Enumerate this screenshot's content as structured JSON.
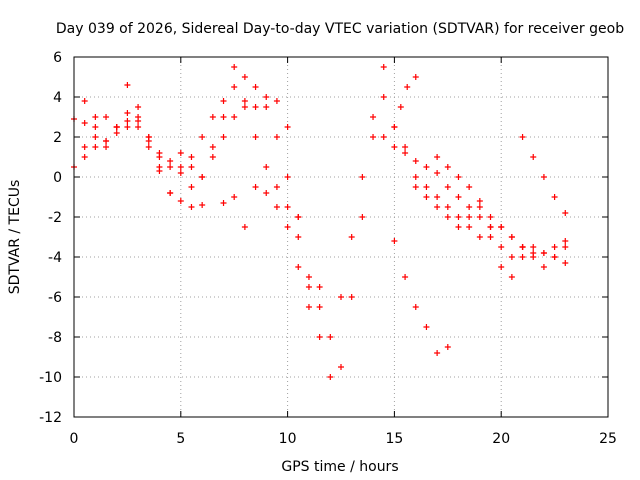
{
  "chart_data": {
    "type": "scatter",
    "title": "Day 039 of 2026, Sidereal Day-to-day VTEC variation (SDTVAR) for receiver geob",
    "xlabel": "GPS time / hours",
    "ylabel": "SDTVAR / TECUs",
    "xlim": [
      0,
      25
    ],
    "ylim": [
      -12,
      6
    ],
    "x_ticks": [
      "0",
      "5",
      "10",
      "15",
      "20",
      "25"
    ],
    "y_ticks": [
      "-12",
      "-10",
      "-8",
      "-6",
      "-4",
      "-2",
      "0",
      "2",
      "4",
      "6"
    ],
    "grid": true,
    "legend": "none",
    "marker": "plus",
    "color": "#ff0000",
    "series": [
      {
        "x": [
          0.0,
          0.5,
          1.0,
          1.5,
          2.0,
          2.5,
          3.0,
          3.5,
          4.0,
          4.5,
          5.0,
          5.5,
          6.0
        ],
        "y": [
          0.5,
          1.5,
          2.5,
          3.0,
          2.5,
          3.2,
          2.8,
          1.5,
          0.3,
          -0.8,
          -1.2,
          -1.5,
          -1.4
        ]
      },
      {
        "x": [
          0.0,
          0.5,
          1.0,
          1.5,
          2.0,
          2.5,
          3.0,
          3.5,
          4.0,
          4.5,
          5.0,
          5.5,
          6.0,
          6.5,
          7.0,
          7.5,
          8.0,
          8.5,
          9.0,
          9.5,
          10.0,
          10.5,
          11.0,
          11.5,
          12.0,
          12.5,
          13.0,
          13.5,
          14.0,
          14.5
        ],
        "y": [
          2.9,
          2.7,
          2.0,
          1.8,
          2.5,
          4.6,
          3.5,
          2.0,
          0.5,
          -0.8,
          0.5,
          1.0,
          2.0,
          3.0,
          3.8,
          4.5,
          3.8,
          3.5,
          3.5,
          2.0,
          0.0,
          -3.0,
          -5.5,
          -8.0,
          -10.0,
          -9.5,
          -6.0,
          -2.0,
          2.0,
          4.0
        ]
      },
      {
        "x": [
          0.5,
          1.0,
          1.5,
          2.0,
          2.5,
          3.0,
          3.5,
          4.0,
          4.5,
          5.0,
          5.5,
          6.0,
          6.5,
          7.0,
          7.5,
          8.0,
          8.5,
          9.0,
          9.5,
          10.0,
          10.5,
          11.0,
          11.5,
          12.0,
          12.5,
          13.0,
          13.5,
          14.0,
          14.5,
          15.0,
          15.5,
          16.0,
          16.5,
          17.0,
          17.5,
          18.0,
          18.5,
          19.0,
          19.5,
          20.0,
          20.5,
          21.0,
          21.5,
          22.0,
          22.5,
          23.0
        ],
        "y": [
          3.8,
          3.0,
          1.5,
          2.2,
          2.5,
          3.0,
          2.0,
          1.0,
          0.8,
          1.2,
          0.5,
          0.0,
          1.5,
          3.0,
          5.5,
          5.0,
          4.5,
          4.0,
          3.8,
          2.5,
          -2.0,
          -5.0,
          -6.5,
          -8.0,
          -6.0,
          -3.0,
          0.0,
          3.0,
          5.5,
          2.5,
          1.5,
          0.0,
          -0.5,
          -1.0,
          -1.5,
          -2.0,
          -2.5,
          -3.0,
          -3.0,
          -4.5,
          -5.0,
          -4.0,
          -3.5,
          -3.8,
          -4.0,
          -3.5
        ]
      },
      {
        "x": [
          0.5,
          1.0,
          1.5,
          2.0,
          2.5,
          3.0,
          3.5,
          4.0,
          4.5,
          5.0,
          5.5,
          6.0,
          6.5,
          7.0,
          7.5,
          8.0,
          8.5,
          9.0,
          9.5,
          10.0,
          10.5
        ],
        "y": [
          1.0,
          1.5,
          1.8,
          2.5,
          2.8,
          2.5,
          1.8,
          1.2,
          0.5,
          0.2,
          -0.5,
          0.0,
          1.0,
          2.0,
          3.0,
          3.5,
          2.0,
          0.5,
          -0.5,
          -1.5,
          -2.0
        ]
      },
      {
        "x": [
          7.0,
          7.5,
          8.0,
          8.5,
          9.0,
          9.5,
          10.0,
          10.5,
          11.0,
          11.5
        ],
        "y": [
          -1.3,
          -1.0,
          -2.5,
          -0.5,
          -0.8,
          -1.5,
          -2.5,
          -4.5,
          -6.5,
          -5.5
        ]
      },
      {
        "x": [
          15.0,
          15.5,
          16.0,
          16.5,
          17.0,
          17.5
        ],
        "y": [
          -3.2,
          -5.0,
          -6.5,
          -7.5,
          -8.8,
          -8.5
        ]
      },
      {
        "x": [
          14.5,
          15.0,
          15.5,
          16.0,
          16.5,
          17.0,
          17.5,
          18.0,
          18.5,
          19.0,
          19.5,
          20.0,
          20.5,
          21.0,
          21.5,
          22.0,
          22.5,
          23.0
        ],
        "y": [
          2.0,
          1.5,
          1.2,
          0.8,
          0.5,
          0.2,
          -0.5,
          -1.0,
          -1.5,
          -2.0,
          -2.5,
          -2.5,
          -3.0,
          -3.5,
          -3.8,
          -3.8,
          -3.5,
          -3.2
        ]
      },
      {
        "x": [
          16.0,
          16.5,
          17.0,
          17.5,
          18.0,
          18.5,
          19.0,
          19.5,
          20.0,
          20.5,
          21.0,
          21.5,
          22.0,
          22.5,
          23.0
        ],
        "y": [
          -0.5,
          -1.0,
          -1.5,
          -2.0,
          -2.5,
          -2.0,
          -1.5,
          -2.5,
          -3.5,
          -4.0,
          -3.5,
          -4.0,
          -4.5,
          -4.0,
          -4.3
        ]
      },
      {
        "x": [
          15.0,
          15.3,
          15.6,
          16.0
        ],
        "y": [
          2.5,
          3.5,
          4.5,
          5.0
        ]
      },
      {
        "x": [
          21.0,
          21.5,
          22.0,
          22.5,
          23.0
        ],
        "y": [
          2.0,
          1.0,
          0.0,
          -1.0,
          -1.8
        ]
      },
      {
        "x": [
          17.0,
          17.5,
          18.0,
          18.5,
          19.0,
          19.5,
          20.0,
          20.5,
          21.0
        ],
        "y": [
          1.0,
          0.5,
          0.0,
          -0.5,
          -1.2,
          -2.0,
          -2.5,
          -3.0,
          -3.5
        ]
      }
    ]
  }
}
